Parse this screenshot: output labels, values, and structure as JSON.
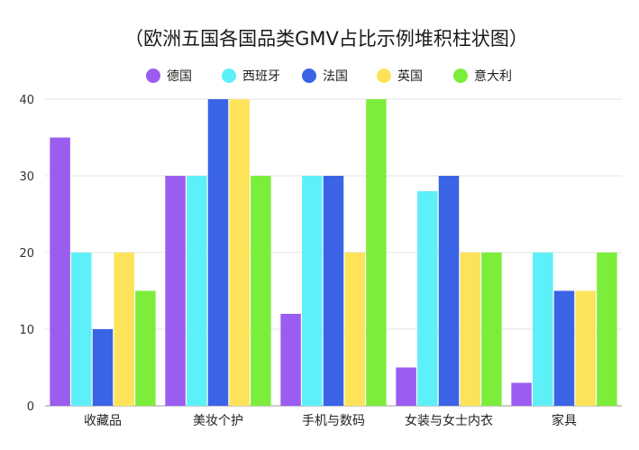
{
  "chart_data": {
    "type": "bar",
    "title": "（欧洲五国各国品类GMV占比示例堆积柱状图）",
    "xlabel": "",
    "ylabel": "",
    "ylim": [
      0,
      40
    ],
    "yticks": [
      0,
      10,
      20,
      30,
      40
    ],
    "grid": true,
    "legend_position": "top",
    "categories": [
      "收藏品",
      "美妆个护",
      "手机与数码",
      "女装与女士内衣",
      "家具"
    ],
    "series": [
      {
        "name": "德国",
        "color": "#9b5cf0",
        "values": [
          35,
          30,
          12,
          5,
          3
        ]
      },
      {
        "name": "西班牙",
        "color": "#5ef0f8",
        "values": [
          20,
          30,
          30,
          28,
          20
        ]
      },
      {
        "name": "法国",
        "color": "#3a63e6",
        "values": [
          10,
          40,
          30,
          30,
          15
        ]
      },
      {
        "name": "英国",
        "color": "#fde35a",
        "values": [
          20,
          40,
          20,
          20,
          15
        ]
      },
      {
        "name": "意大利",
        "color": "#7ded3c",
        "values": [
          15,
          30,
          40,
          20,
          20
        ]
      }
    ]
  }
}
